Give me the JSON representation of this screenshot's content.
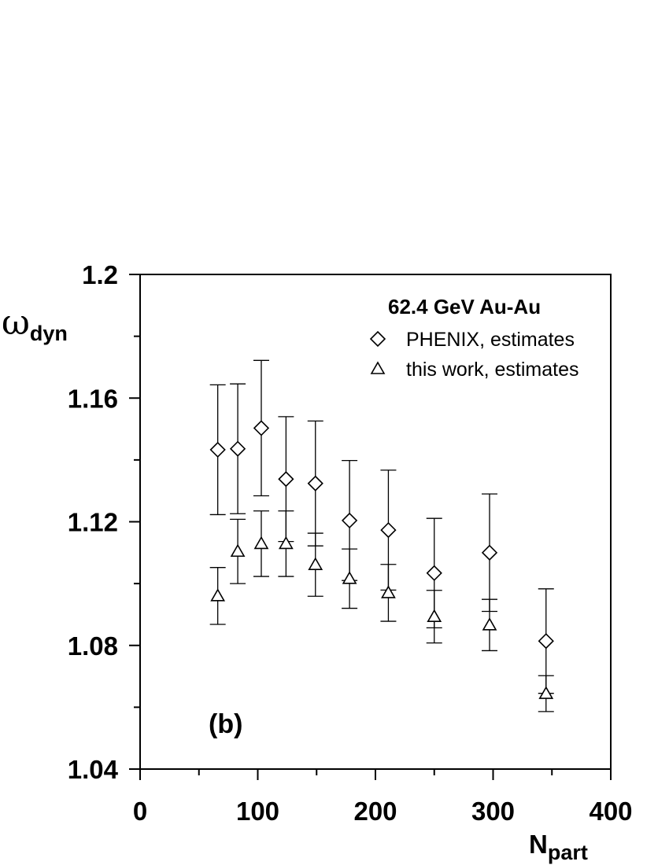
{
  "chart_data": {
    "type": "scatter",
    "title": "62.4 GeV Au-Au",
    "panel_label": "(b)",
    "xlabel": {
      "main": "N",
      "sub": "part"
    },
    "ylabel": {
      "main": "ω",
      "sub": "dyn"
    },
    "xlim": [
      0,
      400
    ],
    "ylim": [
      1.04,
      1.2
    ],
    "xticks": [
      0,
      100,
      200,
      300,
      400
    ],
    "xtick_labels": [
      "0",
      "100",
      "200",
      "300",
      "400"
    ],
    "yticks": [
      1.04,
      1.08,
      1.12,
      1.16,
      1.2
    ],
    "ytick_labels": [
      "1.04",
      "1.08",
      "1.12",
      "1.16",
      "1.2"
    ],
    "x_minor_step": 50,
    "y_minor_step": 0.02,
    "grid": false,
    "legend_position": "top-right",
    "series": [
      {
        "name": "PHENIX, estimates",
        "marker": "diamond",
        "points": [
          {
            "x": 66,
            "y": 1.1433,
            "err": 0.021
          },
          {
            "x": 83,
            "y": 1.1436,
            "err": 0.021
          },
          {
            "x": 103,
            "y": 1.1503,
            "err": 0.0219
          },
          {
            "x": 124,
            "y": 1.1338,
            "err": 0.0202
          },
          {
            "x": 149,
            "y": 1.1324,
            "err": 0.0202
          },
          {
            "x": 178,
            "y": 1.1204,
            "err": 0.0194
          },
          {
            "x": 211,
            "y": 1.1173,
            "err": 0.0194
          },
          {
            "x": 250,
            "y": 1.1034,
            "err": 0.0177
          },
          {
            "x": 297,
            "y": 1.11,
            "err": 0.019
          },
          {
            "x": 345,
            "y": 1.0814,
            "err": 0.0169
          }
        ]
      },
      {
        "name": "this work, estimates",
        "marker": "triangle",
        "points": [
          {
            "x": 66,
            "y": 1.096,
            "err": 0.0092
          },
          {
            "x": 83,
            "y": 1.1104,
            "err": 0.0104
          },
          {
            "x": 103,
            "y": 1.1129,
            "err": 0.0106
          },
          {
            "x": 124,
            "y": 1.1129,
            "err": 0.0106
          },
          {
            "x": 149,
            "y": 1.1061,
            "err": 0.0102
          },
          {
            "x": 178,
            "y": 1.1016,
            "err": 0.0096
          },
          {
            "x": 211,
            "y": 1.097,
            "err": 0.0092
          },
          {
            "x": 250,
            "y": 1.0893,
            "err": 0.0085
          },
          {
            "x": 297,
            "y": 1.0866,
            "err": 0.0083
          },
          {
            "x": 345,
            "y": 1.0644,
            "err": 0.0058
          }
        ]
      }
    ]
  }
}
